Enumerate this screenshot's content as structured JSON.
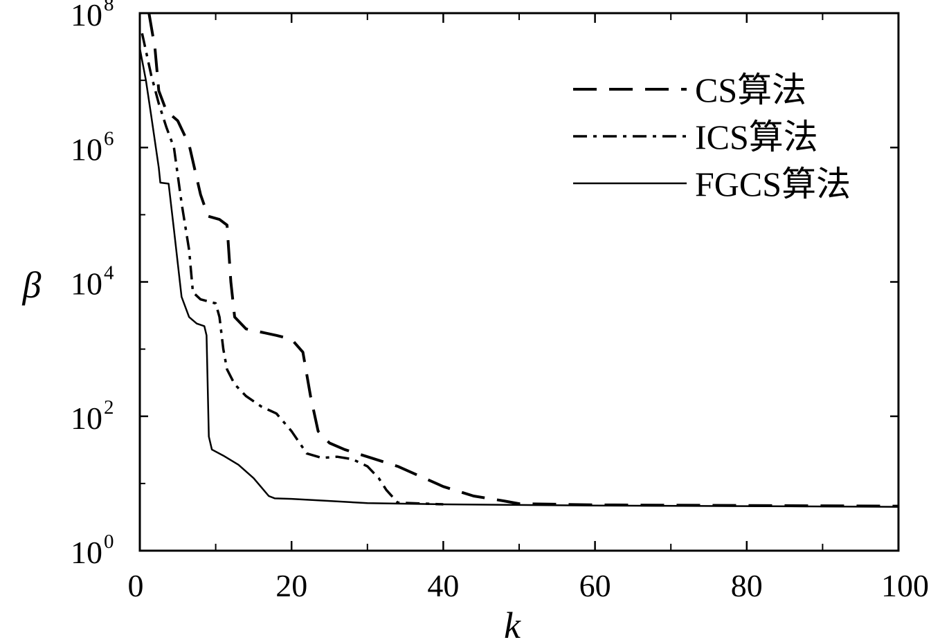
{
  "chart_data": {
    "type": "line",
    "title": "",
    "xlabel": "k",
    "ylabel": "β",
    "xlim": [
      0,
      100
    ],
    "ylim_log10": [
      0,
      8
    ],
    "y_scale": "log",
    "grid": false,
    "legend_position": "top-right",
    "x_ticks": [
      {
        "value": 0,
        "label": "0"
      },
      {
        "value": 20,
        "label": "20"
      },
      {
        "value": 40,
        "label": "40"
      },
      {
        "value": 60,
        "label": "60"
      },
      {
        "value": 80,
        "label": "80"
      },
      {
        "value": 100,
        "label": "100"
      }
    ],
    "x_minor_ticks": [
      10,
      30,
      50,
      70,
      90
    ],
    "y_ticks": [
      {
        "exp": 0,
        "base": "10",
        "sup": "0"
      },
      {
        "exp": 2,
        "base": "10",
        "sup": "2"
      },
      {
        "exp": 4,
        "base": "10",
        "sup": "4"
      },
      {
        "exp": 6,
        "base": "10",
        "sup": "6"
      },
      {
        "exp": 8,
        "base": "10",
        "sup": "8"
      }
    ],
    "series": [
      {
        "name": "CS算法",
        "style": "dashed",
        "points": [
          [
            1.2,
            100000000.0
          ],
          [
            2.0,
            30000000.0
          ],
          [
            2.5,
            7000000.0
          ],
          [
            3.5,
            3500000.0
          ],
          [
            5.0,
            2500000.0
          ],
          [
            6.5,
            1100000.0
          ],
          [
            8.0,
            200000.0
          ],
          [
            9.0,
            95000.0
          ],
          [
            10.5,
            85000.0
          ],
          [
            11.5,
            70000.0
          ],
          [
            12.0,
            10000.0
          ],
          [
            12.5,
            3000.0
          ],
          [
            14.0,
            2000.0
          ],
          [
            18.0,
            1600.0
          ],
          [
            20.0,
            1400.0
          ],
          [
            21.5,
            900.0
          ],
          [
            22.5,
            200.0
          ],
          [
            23.5,
            60.0
          ],
          [
            25.0,
            40.0
          ],
          [
            27.0,
            32.0
          ],
          [
            30.0,
            25.0
          ],
          [
            34.0,
            18.0
          ],
          [
            40.0,
            9.0
          ],
          [
            44.0,
            6.5
          ],
          [
            48.0,
            5.5
          ],
          [
            50.0,
            5.0
          ],
          [
            60.0,
            4.8
          ],
          [
            80.0,
            4.7
          ],
          [
            100.0,
            4.6
          ]
        ]
      },
      {
        "name": "ICS算法",
        "style": "dashdot",
        "points": [
          [
            0.3,
            50000000.0
          ],
          [
            1.5,
            12000000.0
          ],
          [
            2.5,
            4500000.0
          ],
          [
            3.5,
            2000000.0
          ],
          [
            4.5,
            1000000.0
          ],
          [
            5.5,
            150000.0
          ],
          [
            6.5,
            30000.0
          ],
          [
            7.0,
            7000.0
          ],
          [
            8.0,
            5500.0
          ],
          [
            10.0,
            4800.0
          ],
          [
            10.5,
            3000.0
          ],
          [
            11.0,
            1000.0
          ],
          [
            11.5,
            500.0
          ],
          [
            12.5,
            300.0
          ],
          [
            14.0,
            200.0
          ],
          [
            16.0,
            140.0
          ],
          [
            18.0,
            110.0
          ],
          [
            20.0,
            60.0
          ],
          [
            22.0,
            28.0
          ],
          [
            24.0,
            24.0
          ],
          [
            26.0,
            25.0
          ],
          [
            28.0,
            23.0
          ],
          [
            30.0,
            18.0
          ],
          [
            31.5,
            12.0
          ],
          [
            32.5,
            8.0
          ],
          [
            34.0,
            5.2
          ],
          [
            40.0,
            4.9
          ]
        ]
      },
      {
        "name": "FGCS算法",
        "style": "solid",
        "points": [
          [
            0.0,
            30000000.0
          ],
          [
            0.8,
            10000000.0
          ],
          [
            1.5,
            3000000.0
          ],
          [
            2.5,
            500000.0
          ],
          [
            2.7,
            300000.0
          ],
          [
            3.8,
            290000.0
          ],
          [
            4.5,
            60000.0
          ],
          [
            5.5,
            6000.0
          ],
          [
            6.5,
            3000.0
          ],
          [
            7.5,
            2400.0
          ],
          [
            8.5,
            2200.0
          ],
          [
            8.8,
            1600.0
          ],
          [
            9.1,
            50.0
          ],
          [
            9.5,
            32.0
          ],
          [
            11.0,
            26.0
          ],
          [
            13.0,
            19.0
          ],
          [
            15.0,
            12.0
          ],
          [
            17.0,
            6.5
          ],
          [
            17.8,
            6.0
          ],
          [
            20.0,
            5.9
          ],
          [
            25.0,
            5.5
          ],
          [
            30.0,
            5.1
          ],
          [
            40.0,
            4.9
          ],
          [
            60.0,
            4.7
          ],
          [
            80.0,
            4.6
          ],
          [
            100.0,
            4.5
          ]
        ]
      }
    ]
  }
}
